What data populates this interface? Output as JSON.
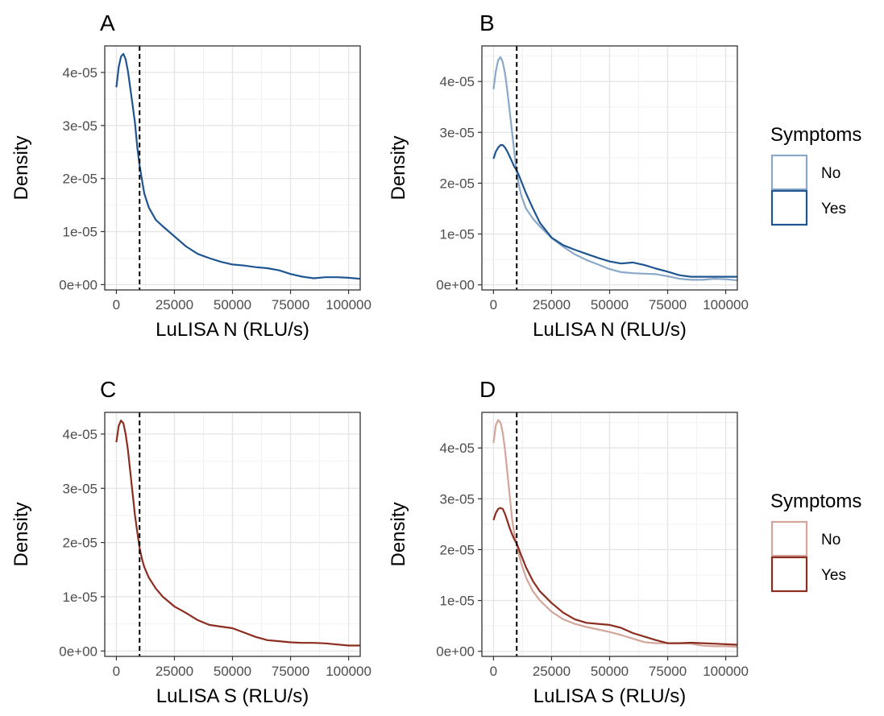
{
  "chart_data": [
    {
      "panel": "A",
      "type": "line",
      "xlabel": "LuLISA N (RLU/s)",
      "ylabel": "Density",
      "xlim": [
        -5000,
        105000
      ],
      "ylim": [
        -1e-06,
        4.5e-05
      ],
      "x_ticks": [
        0,
        25000,
        50000,
        75000,
        100000
      ],
      "x_tick_labels": [
        "0",
        "25000",
        "50000",
        "75000",
        "100000"
      ],
      "y_ticks": [
        0,
        1e-05,
        2e-05,
        3e-05,
        4e-05
      ],
      "y_tick_labels": [
        "0e+00",
        "1e-05",
        "2e-05",
        "3e-05",
        "4e-05"
      ],
      "threshold_x": 10000,
      "grid": true,
      "series": [
        {
          "color": "#1f5591",
          "x": [
            0,
            1000,
            2000,
            3000,
            4000,
            5000,
            6000,
            7000,
            8000,
            9000,
            10000,
            11000,
            12000,
            14000,
            17000,
            20000,
            25000,
            30000,
            35000,
            40000,
            45000,
            50000,
            55000,
            60000,
            65000,
            70000,
            75000,
            80000,
            85000,
            90000,
            95000,
            100000,
            105000
          ],
          "y": [
            3.72e-05,
            4.1e-05,
            4.3e-05,
            4.35e-05,
            4.25e-05,
            4.02e-05,
            3.7e-05,
            3.38e-05,
            3.05e-05,
            2.6e-05,
            2.25e-05,
            1.98e-05,
            1.72e-05,
            1.45e-05,
            1.22e-05,
            1.1e-05,
            9.1e-06,
            7.2e-06,
            5.8e-06,
            5e-06,
            4.3e-06,
            3.8e-06,
            3.6e-06,
            3.3e-06,
            3.1e-06,
            2.7e-06,
            2e-06,
            1.5e-06,
            1.2e-06,
            1.4e-06,
            1.4e-06,
            1.3e-06,
            1.1e-06
          ]
        }
      ]
    },
    {
      "panel": "B",
      "type": "line",
      "xlabel": "LuLISA N (RLU/s)",
      "ylabel": "Density",
      "xlim": [
        -5000,
        105000
      ],
      "ylim": [
        -1e-06,
        4.7e-05
      ],
      "x_ticks": [
        0,
        25000,
        50000,
        75000,
        100000
      ],
      "x_tick_labels": [
        "0",
        "25000",
        "50000",
        "75000",
        "100000"
      ],
      "y_ticks": [
        0,
        1e-05,
        2e-05,
        3e-05,
        4e-05
      ],
      "y_tick_labels": [
        "0e+00",
        "1e-05",
        "2e-05",
        "3e-05",
        "4e-05"
      ],
      "threshold_x": 10000,
      "grid": true,
      "legend": {
        "title": "Symptoms",
        "position": "right"
      },
      "series": [
        {
          "name": "No",
          "color": "#8aa9c9",
          "x": [
            0,
            1000,
            2000,
            3000,
            4000,
            5000,
            6000,
            7000,
            8000,
            9000,
            10000,
            11000,
            12000,
            14000,
            17000,
            20000,
            25000,
            30000,
            35000,
            40000,
            45000,
            50000,
            55000,
            60000,
            65000,
            70000,
            75000,
            80000,
            85000,
            90000,
            95000,
            100000,
            105000
          ],
          "y": [
            3.85e-05,
            4.2e-05,
            4.42e-05,
            4.48e-05,
            4.38e-05,
            4.15e-05,
            3.8e-05,
            3.4e-05,
            3e-05,
            2.6e-05,
            2.22e-05,
            1.95e-05,
            1.75e-05,
            1.5e-05,
            1.3e-05,
            1.15e-05,
            9.2e-06,
            7.5e-06,
            6e-06,
            4.9e-06,
            4e-06,
            3.1e-06,
            2.5e-06,
            2.3e-06,
            2.2e-06,
            2.1e-06,
            1.7e-06,
            1.2e-06,
            1e-06,
            1e-06,
            1.2e-06,
            1.1e-06,
            9e-07
          ]
        },
        {
          "name": "Yes",
          "color": "#1f5591",
          "x": [
            0,
            1000,
            2000,
            3000,
            4000,
            5000,
            6000,
            7000,
            8000,
            9000,
            10000,
            11000,
            12000,
            14000,
            17000,
            20000,
            25000,
            30000,
            35000,
            40000,
            45000,
            50000,
            55000,
            60000,
            65000,
            70000,
            75000,
            80000,
            85000,
            90000,
            95000,
            100000,
            105000
          ],
          "y": [
            2.48e-05,
            2.62e-05,
            2.7e-05,
            2.75e-05,
            2.75e-05,
            2.7e-05,
            2.62e-05,
            2.52e-05,
            2.42e-05,
            2.32e-05,
            2.25e-05,
            2.15e-05,
            2.03e-05,
            1.8e-05,
            1.5e-05,
            1.22e-05,
            9.3e-06,
            7.8e-06,
            6.9e-06,
            6.1e-06,
            5.3e-06,
            4.6e-06,
            4.2e-06,
            4.4e-06,
            3.9e-06,
            3.2e-06,
            2.6e-06,
            1.9e-06,
            1.6e-06,
            1.6e-06,
            1.6e-06,
            1.6e-06,
            1.6e-06
          ]
        }
      ]
    },
    {
      "panel": "C",
      "type": "line",
      "xlabel": "LuLISA S (RLU/s)",
      "ylabel": "Density",
      "xlim": [
        -5000,
        105000
      ],
      "ylim": [
        -1e-06,
        4.4e-05
      ],
      "x_ticks": [
        0,
        25000,
        50000,
        75000,
        100000
      ],
      "x_tick_labels": [
        "0",
        "25000",
        "50000",
        "75000",
        "100000"
      ],
      "y_ticks": [
        0,
        1e-05,
        2e-05,
        3e-05,
        4e-05
      ],
      "y_tick_labels": [
        "0e+00",
        "1e-05",
        "2e-05",
        "3e-05",
        "4e-05"
      ],
      "threshold_x": 10000,
      "grid": true,
      "series": [
        {
          "color": "#8c2d1f",
          "x": [
            0,
            1000,
            2000,
            3000,
            4000,
            5000,
            6000,
            7000,
            8000,
            9000,
            10000,
            11000,
            12000,
            14000,
            17000,
            20000,
            25000,
            30000,
            35000,
            40000,
            45000,
            50000,
            55000,
            60000,
            65000,
            70000,
            75000,
            80000,
            85000,
            90000,
            95000,
            100000,
            105000
          ],
          "y": [
            3.85e-05,
            4.15e-05,
            4.25e-05,
            4.2e-05,
            4e-05,
            3.7e-05,
            3.3e-05,
            2.9e-05,
            2.5e-05,
            2.2e-05,
            1.9e-05,
            1.7e-05,
            1.55e-05,
            1.35e-05,
            1.15e-05,
            1e-05,
            8.2e-06,
            7e-06,
            5.7e-06,
            4.8e-06,
            4.5e-06,
            4.2e-06,
            3.4e-06,
            2.6e-06,
            2e-06,
            1.8e-06,
            1.6e-06,
            1.5e-06,
            1.5e-06,
            1.4e-06,
            1.2e-06,
            1e-06,
            1e-06
          ]
        }
      ]
    },
    {
      "panel": "D",
      "type": "line",
      "xlabel": "LuLISA S (RLU/s)",
      "ylabel": "Density",
      "xlim": [
        -5000,
        105000
      ],
      "ylim": [
        -1e-06,
        4.7e-05
      ],
      "x_ticks": [
        0,
        25000,
        50000,
        75000,
        100000
      ],
      "x_tick_labels": [
        "0",
        "25000",
        "50000",
        "75000",
        "100000"
      ],
      "y_ticks": [
        0,
        1e-05,
        2e-05,
        3e-05,
        4e-05
      ],
      "y_tick_labels": [
        "0e+00",
        "1e-05",
        "2e-05",
        "3e-05",
        "4e-05"
      ],
      "threshold_x": 10000,
      "grid": true,
      "legend": {
        "title": "Symptoms",
        "position": "right"
      },
      "series": [
        {
          "name": "No",
          "color": "#d3a59b",
          "x": [
            0,
            1000,
            2000,
            3000,
            4000,
            5000,
            6000,
            7000,
            8000,
            9000,
            10000,
            11000,
            12000,
            14000,
            17000,
            20000,
            25000,
            30000,
            35000,
            40000,
            45000,
            50000,
            55000,
            60000,
            65000,
            70000,
            75000,
            80000,
            85000,
            90000,
            95000,
            100000,
            105000
          ],
          "y": [
            4.1e-05,
            4.45e-05,
            4.55e-05,
            4.5e-05,
            4.3e-05,
            3.95e-05,
            3.5e-05,
            3.05e-05,
            2.6e-05,
            2.3e-05,
            2.1e-05,
            1.9e-05,
            1.72e-05,
            1.45e-05,
            1.18e-05,
            1e-05,
            7.8e-06,
            6.3e-06,
            5.4e-06,
            4.8e-06,
            4.3e-06,
            3.8e-06,
            3.2e-06,
            2.5e-06,
            1.8e-06,
            1.6e-06,
            1.6e-06,
            1.6e-06,
            1.5e-06,
            1.1e-06,
            1e-06,
            1e-06,
            9e-07
          ]
        },
        {
          "name": "Yes",
          "color": "#8c2d1f",
          "x": [
            0,
            1000,
            2000,
            3000,
            4000,
            5000,
            6000,
            7000,
            8000,
            9000,
            10000,
            11000,
            12000,
            14000,
            17000,
            20000,
            25000,
            30000,
            35000,
            40000,
            45000,
            50000,
            55000,
            60000,
            65000,
            70000,
            75000,
            80000,
            85000,
            90000,
            95000,
            100000,
            105000
          ],
          "y": [
            2.58e-05,
            2.72e-05,
            2.8e-05,
            2.82e-05,
            2.8e-05,
            2.7e-05,
            2.56e-05,
            2.42e-05,
            2.3e-05,
            2.2e-05,
            2.12e-05,
            2e-05,
            1.88e-05,
            1.65e-05,
            1.38e-05,
            1.18e-05,
            9.5e-06,
            7.6e-06,
            6.3e-06,
            5.6e-06,
            5.4e-06,
            5.2e-06,
            4.6e-06,
            3.6e-06,
            2.9e-06,
            2.2e-06,
            1.6e-06,
            1.6e-06,
            1.7e-06,
            1.6e-06,
            1.5e-06,
            1.4e-06,
            1.3e-06
          ]
        }
      ]
    }
  ]
}
